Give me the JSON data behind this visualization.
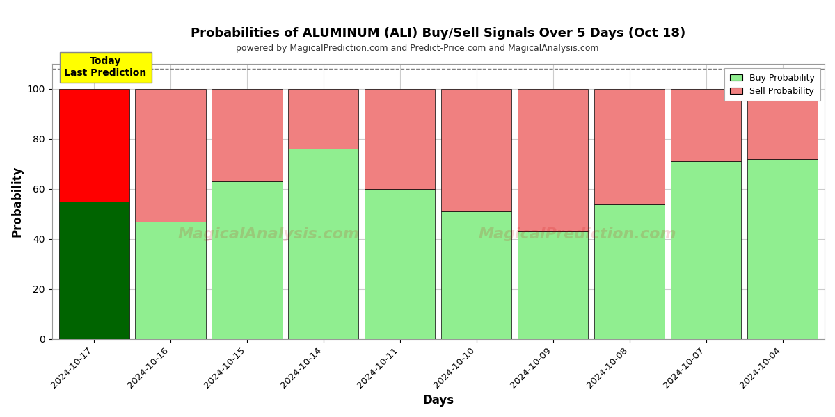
{
  "title": "Probabilities of ALUMINUM (ALI) Buy/Sell Signals Over 5 Days (Oct 18)",
  "subtitle": "powered by MagicalPrediction.com and Predict-Price.com and MagicalAnalysis.com",
  "xlabel": "Days",
  "ylabel": "Probability",
  "dates": [
    "2024-10-17",
    "2024-10-16",
    "2024-10-15",
    "2024-10-14",
    "2024-10-11",
    "2024-10-10",
    "2024-10-09",
    "2024-10-08",
    "2024-10-07",
    "2024-10-04"
  ],
  "buy_values": [
    55,
    47,
    63,
    76,
    60,
    51,
    43,
    54,
    71,
    72
  ],
  "sell_values": [
    45,
    53,
    37,
    24,
    40,
    49,
    57,
    46,
    29,
    28
  ],
  "today_index": 0,
  "buy_color_today": "#006400",
  "sell_color_today": "#FF0000",
  "buy_color_normal": "#90EE90",
  "sell_color_normal": "#F08080",
  "ylim": [
    0,
    110
  ],
  "yticks": [
    0,
    20,
    40,
    60,
    80,
    100
  ],
  "dashed_line_y": 108,
  "watermark1": "MagicalAnalysis.com",
  "watermark2": "MagicalPrediction.com",
  "legend_buy": "Buy Probability",
  "legend_sell": "Sell Probability",
  "today_label": "Today\nLast Prediction",
  "background_color": "#ffffff",
  "grid_color": "#cccccc",
  "bar_width": 0.92
}
